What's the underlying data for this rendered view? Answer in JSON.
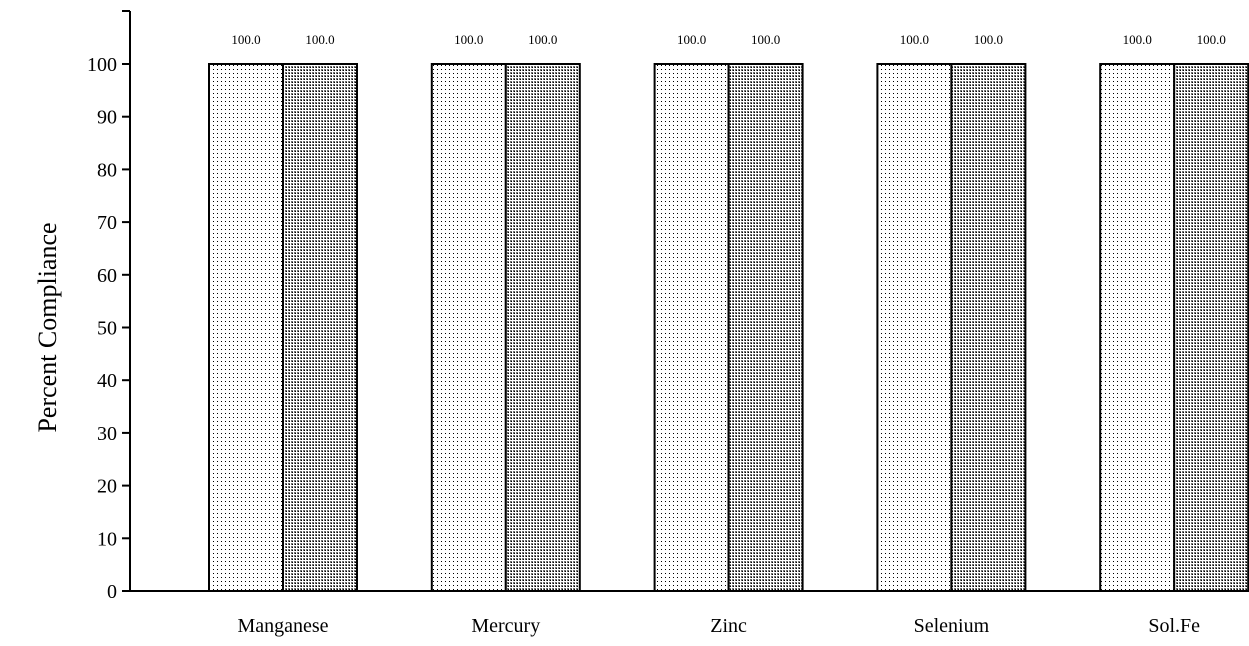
{
  "chart_data": {
    "type": "bar",
    "title": "",
    "xlabel": "",
    "ylabel": "Percent Compliance",
    "categories": [
      "Manganese",
      "Mercury",
      "Zinc",
      "Selenium",
      "Sol.Fe"
    ],
    "series": [
      {
        "values": [
          100.0,
          100.0,
          100.0,
          100.0,
          100.0
        ],
        "pattern": "light-dots",
        "fill": "#e6e6e6"
      },
      {
        "values": [
          100.0,
          100.0,
          100.0,
          100.0,
          100.0
        ],
        "pattern": "dense-dots",
        "fill": "#a6a6a6"
      }
    ],
    "data_labels": [
      [
        "100.0",
        "100.0",
        "100.0",
        "100.0",
        "100.0"
      ],
      [
        "100.0",
        "100.0",
        "100.0",
        "100.0",
        "100.0"
      ]
    ],
    "yticks": [
      0,
      10,
      20,
      30,
      40,
      50,
      60,
      70,
      80,
      90,
      100
    ],
    "ylim": [
      0,
      110
    ],
    "grid": false,
    "legend": "none",
    "colors": {
      "axis": "#000000",
      "bar_edge": "#000000"
    }
  }
}
